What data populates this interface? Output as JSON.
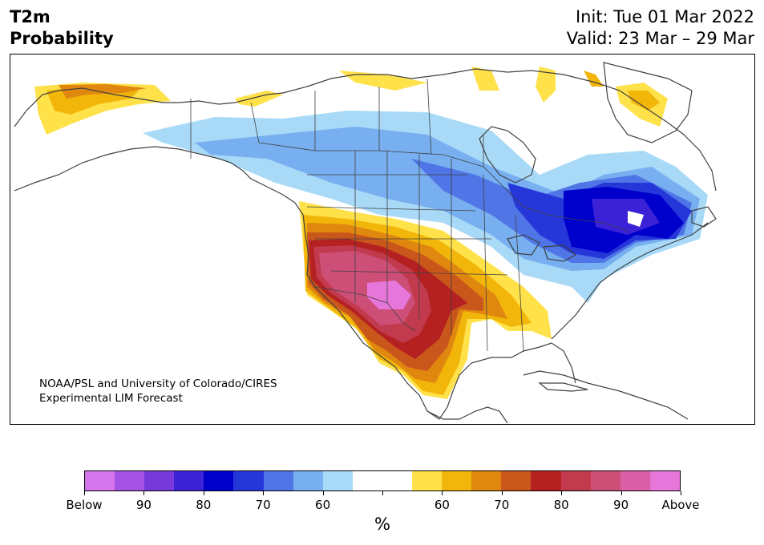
{
  "title": {
    "line1": "T2m",
    "line2": "Probability"
  },
  "dates": {
    "init": "Init: Tue 01 Mar 2022",
    "valid": "Valid: 23 Mar – 29 Mar"
  },
  "credit": {
    "line1": "NOAA/PSL and University of Colorado/CIRES",
    "line2": "Experimental LIM Forecast"
  },
  "colorbar": {
    "colors": [
      "#d676ec",
      "#a553e6",
      "#7739d9",
      "#3c22d6",
      "#0000cd",
      "#2637d9",
      "#4f75e6",
      "#77aff0",
      "#a8daf8",
      "#ffffff",
      "#ffffff",
      "#ffe14a",
      "#f2b50a",
      "#e0870f",
      "#c9561b",
      "#b52121",
      "#c23a4e",
      "#cd4f78",
      "#d95fa6",
      "#e776db"
    ],
    "labels": [
      "Below",
      "90",
      "80",
      "70",
      "60",
      "60",
      "70",
      "80",
      "90",
      "Above"
    ],
    "unit": "%"
  },
  "map": {
    "region": "North America",
    "field": "2m temperature probability",
    "pattern": "above-normal over southwest US and Mexico, below-normal over Canada and Great Lakes/Northeast"
  }
}
